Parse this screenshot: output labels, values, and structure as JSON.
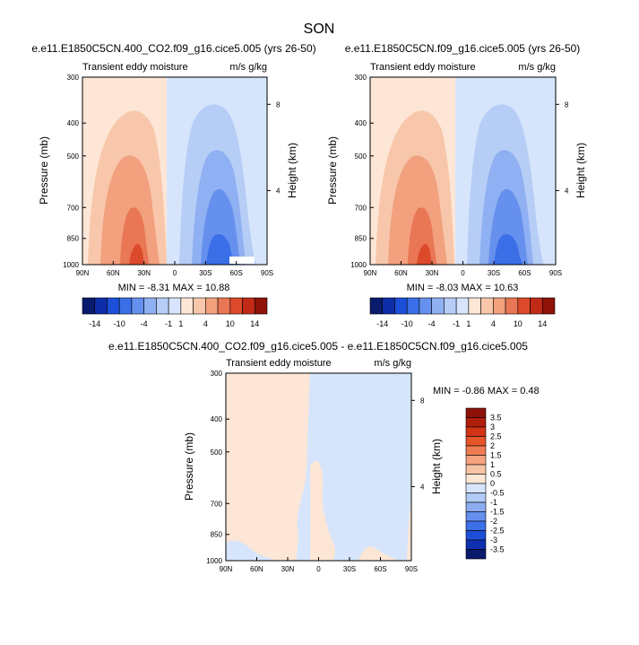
{
  "title": "SON",
  "panels": [
    {
      "title": "e.e11.E1850C5CN.400_CO2.f09_g16.cice5.005 (yrs 26-50)",
      "subtitle_left": "Transient eddy moisture",
      "subtitle_right": "m/s g/kg",
      "ylabel": "Pressure (mb)",
      "y2label": "Height (km)",
      "stats": "MIN = -8.31   MAX = 10.88"
    },
    {
      "title": "e.e11.E1850C5CN.f09_g16.cice5.005 (yrs 26-50)",
      "subtitle_left": "Transient eddy moisture",
      "subtitle_right": "m/s g/kg",
      "ylabel": "Pressure (mb)",
      "y2label": "Height (km)",
      "stats": "MIN = -8.03   MAX = 10.63"
    },
    {
      "title": "e.e11.E1850C5CN.400_CO2.f09_g16.cice5.005 - e.e11.E1850C5CN.f09_g16.cice5.005",
      "subtitle_left": "Transient eddy moisture",
      "subtitle_right": "m/s g/kg",
      "ylabel": "Pressure (mb)",
      "y2label": "Height (km)",
      "stats": "MIN =  -0.86  MAX =   0.48"
    }
  ],
  "colorbar_main": {
    "labels": [
      "-14",
      "-10",
      "-4",
      "-1",
      "1",
      "4",
      "10",
      "14"
    ],
    "colors": [
      "#0a1b6e",
      "#0d2ea8",
      "#1b4fd8",
      "#3a6fe8",
      "#6590ee",
      "#8fb0f2",
      "#b6cdf6",
      "#d6e5fb",
      "#fde6d6",
      "#f8c7ab",
      "#f2a07e",
      "#e97654",
      "#dc4a2b",
      "#c02a17",
      "#8e1208"
    ]
  },
  "colorbar_diff": {
    "labels": [
      "3.5",
      "3",
      "2.5",
      "2",
      "1.5",
      "1",
      "0.5",
      "0",
      "-0.5",
      "-1",
      "-1.5",
      "-2",
      "-2.5",
      "-3",
      "-3.5"
    ],
    "colors": [
      "#8e1208",
      "#b01e0c",
      "#d13416",
      "#e65529",
      "#ee7b52",
      "#f4a27f",
      "#f8c4a6",
      "#fde6d6",
      "#d6e5fb",
      "#b1caf6",
      "#8cacf1",
      "#6590ee",
      "#3c70e6",
      "#1f4fd8",
      "#0f30b0",
      "#0a1b6e"
    ]
  },
  "chart_data": [
    {
      "type": "heatmap",
      "title": "e.e11.E1850C5CN.400_CO2.f09_g16.cice5.005 (yrs 26-50)",
      "x_ticks": [
        "90N",
        "60N",
        "30N",
        "0",
        "30S",
        "60S",
        "90S"
      ],
      "y_ticks": [
        "300",
        "400",
        "500",
        "700",
        "850",
        "1000"
      ],
      "y2_ticks": [
        "8",
        "4"
      ],
      "ylabel": "Pressure (mb)",
      "y2label": "Height (km)",
      "min": -8.31,
      "max": 10.88,
      "ylog": true
    },
    {
      "type": "heatmap",
      "title": "e.e11.E1850C5CN.f09_g16.cice5.005 (yrs 26-50)",
      "x_ticks": [
        "90N",
        "60N",
        "30N",
        "0",
        "30S",
        "60S",
        "90S"
      ],
      "y_ticks": [
        "300",
        "400",
        "500",
        "700",
        "850",
        "1000"
      ],
      "y2_ticks": [
        "8",
        "4"
      ],
      "ylabel": "Pressure (mb)",
      "y2label": "Height (km)",
      "min": -8.03,
      "max": 10.63,
      "ylog": true
    },
    {
      "type": "heatmap",
      "title": "e.e11.E1850C5CN.400_CO2.f09_g16.cice5.005 - e.e11.E1850C5CN.f09_g16.cice5.005",
      "x_ticks": [
        "90N",
        "60N",
        "30N",
        "0",
        "30S",
        "60S",
        "90S"
      ],
      "y_ticks": [
        "300",
        "400",
        "500",
        "700",
        "850",
        "1000"
      ],
      "y2_ticks": [
        "8",
        "4"
      ],
      "ylabel": "Pressure (mb)",
      "y2label": "Height (km)",
      "min": -0.86,
      "max": 0.48,
      "ylog": true
    }
  ]
}
